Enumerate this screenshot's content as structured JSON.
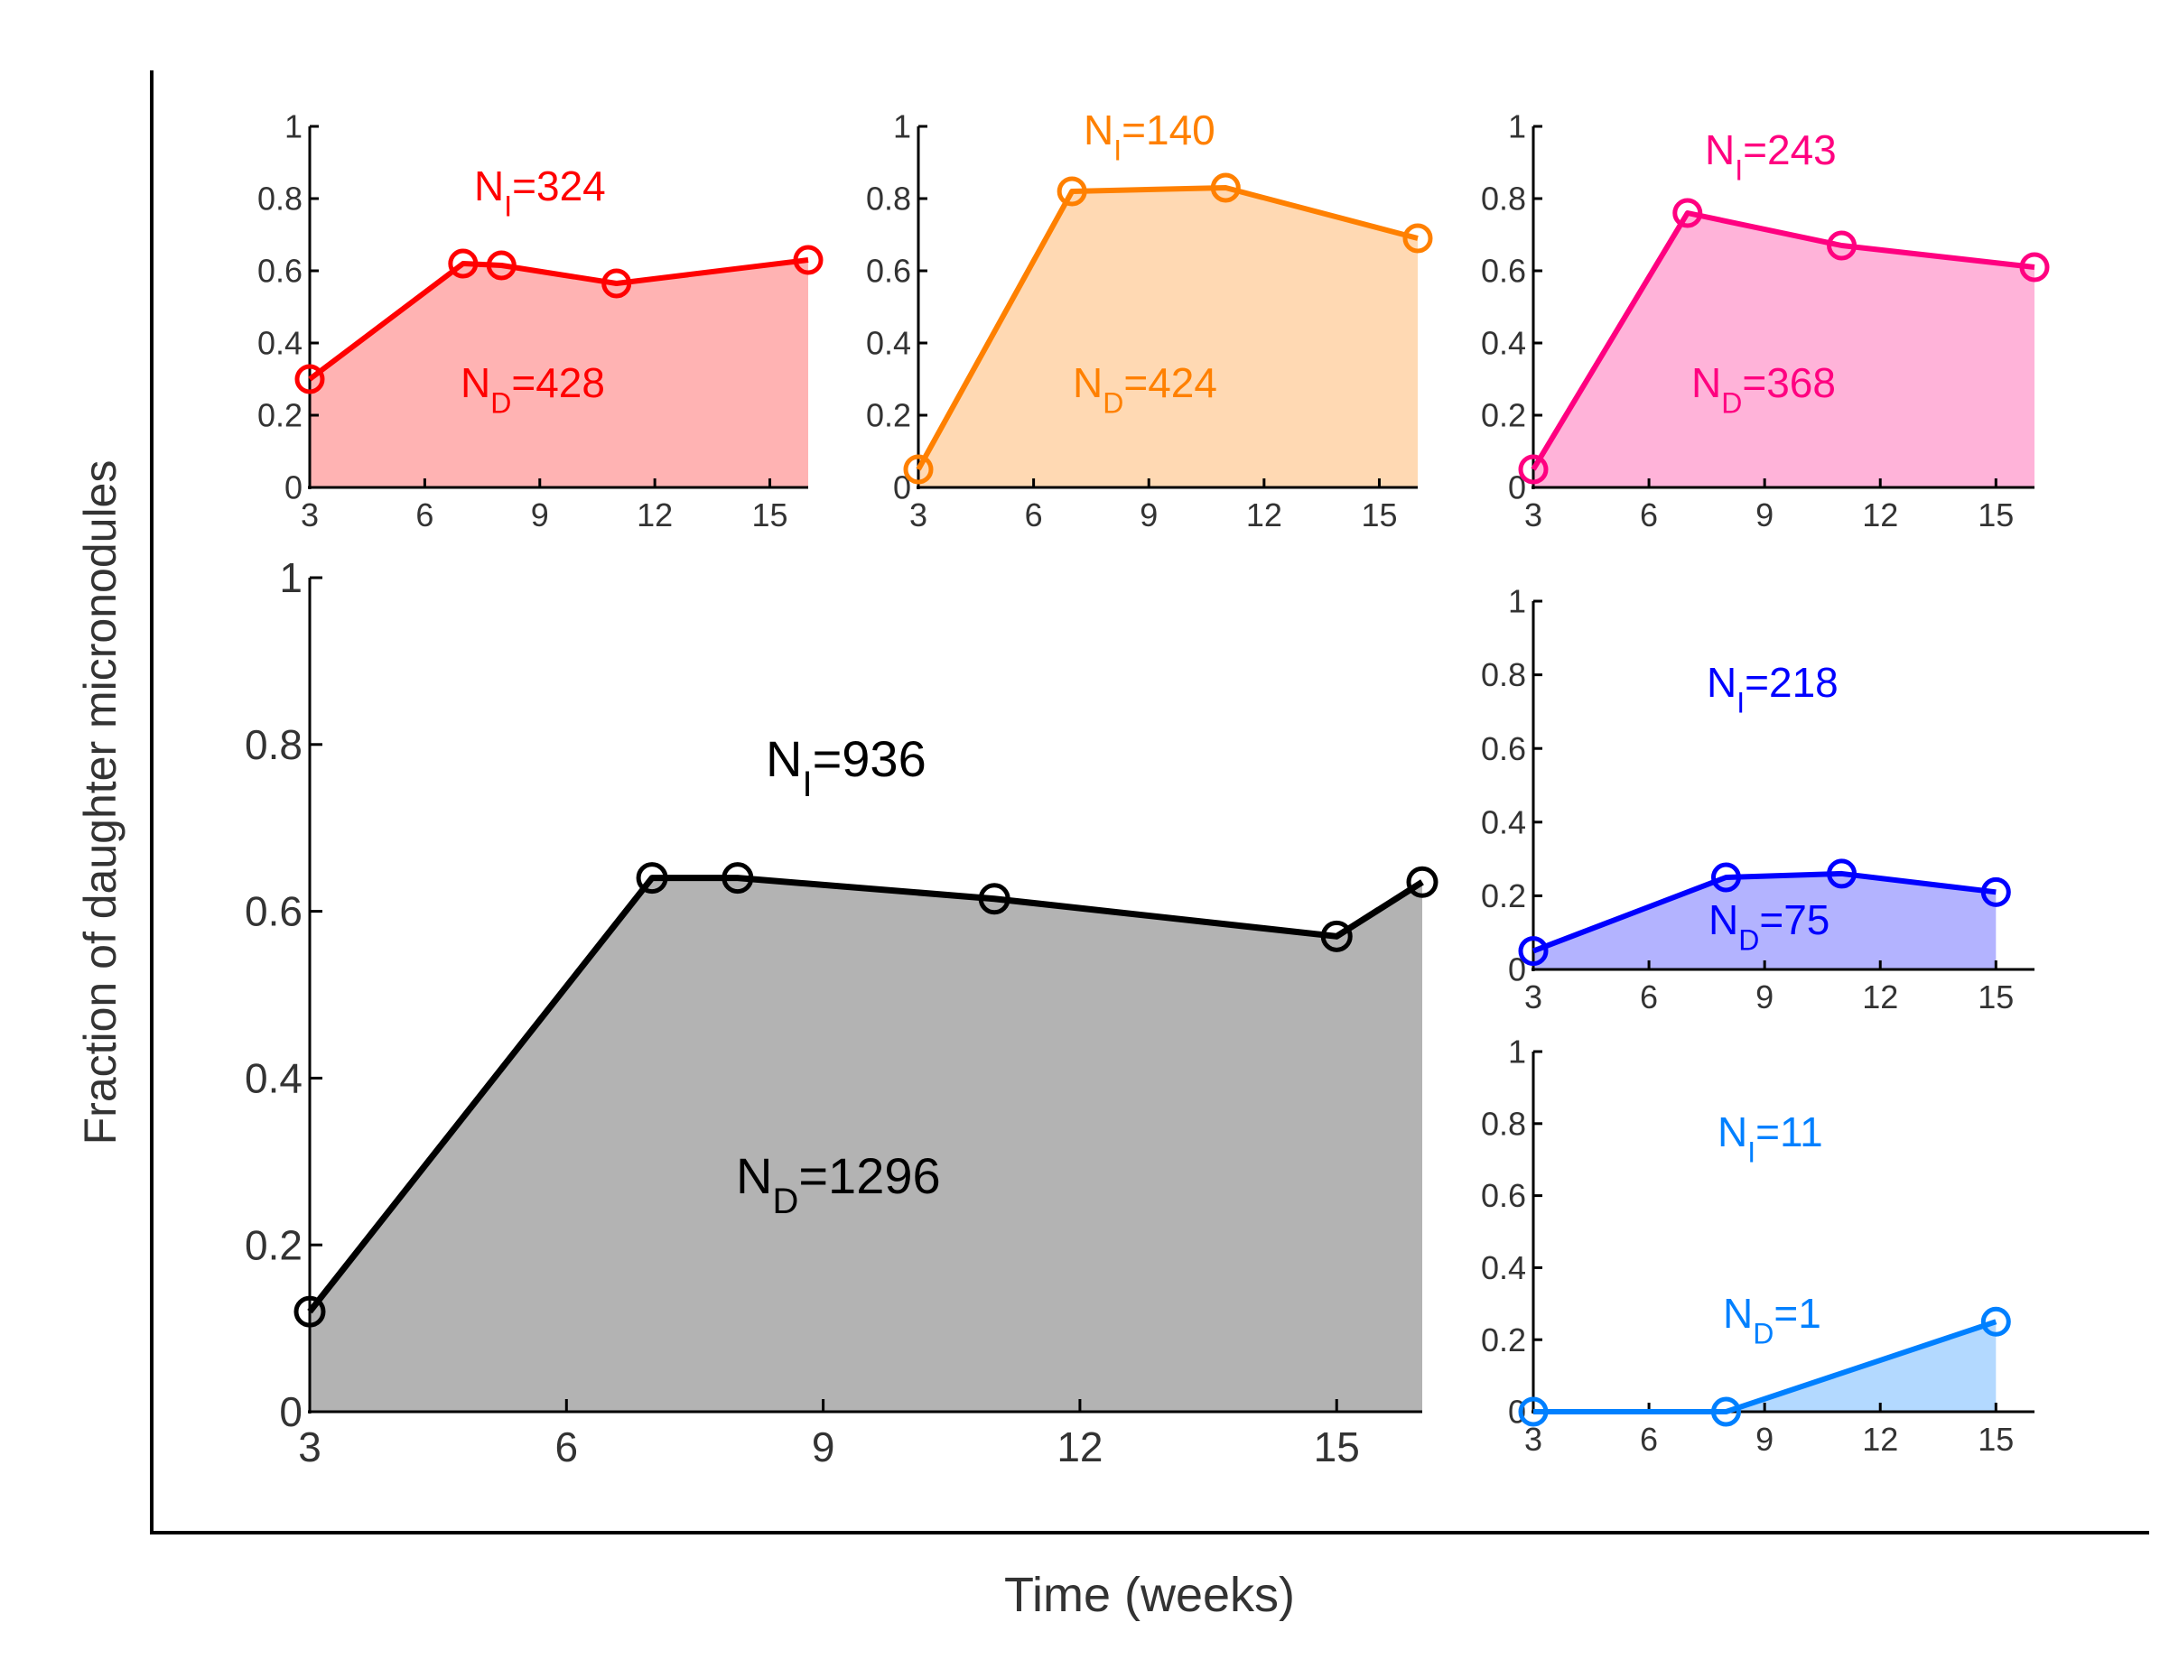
{
  "figure": {
    "ylabel": "Fraction of daughter micronodules",
    "xlabel": "Time (weeks)"
  },
  "chart_data": [
    {
      "id": "main",
      "type": "area",
      "color": "#000000",
      "fill": "#b3b3b3",
      "x": [
        3,
        7,
        8,
        11,
        15,
        16
      ],
      "values": [
        0.12,
        0.64,
        0.64,
        0.615,
        0.57,
        0.635
      ],
      "xlim": [
        3,
        16
      ],
      "ylim": [
        0,
        1
      ],
      "xticks": [
        3,
        6,
        9,
        12,
        15
      ],
      "yticks": [
        0,
        0.2,
        0.4,
        0.6,
        0.8,
        1
      ],
      "ni_text": "936",
      "nd_text": "1296"
    },
    {
      "id": "red",
      "type": "area",
      "color": "#ff0000",
      "fill": "#ffb3b3",
      "x": [
        3,
        7,
        8,
        11,
        16
      ],
      "values": [
        0.3,
        0.62,
        0.615,
        0.565,
        0.63
      ],
      "xlim": [
        3,
        16
      ],
      "ylim": [
        0,
        1
      ],
      "xticks": [
        3,
        6,
        9,
        12,
        15
      ],
      "yticks": [
        0,
        0.2,
        0.4,
        0.6,
        0.8,
        1
      ],
      "ni_text": "324",
      "nd_text": "428"
    },
    {
      "id": "orange",
      "type": "area",
      "color": "#ff8000",
      "fill": "#ffd9b3",
      "x": [
        3,
        7,
        11,
        16
      ],
      "values": [
        0.05,
        0.82,
        0.83,
        0.69
      ],
      "xlim": [
        3,
        16
      ],
      "ylim": [
        0,
        1
      ],
      "xticks": [
        3,
        6,
        9,
        12,
        15
      ],
      "yticks": [
        0,
        0.2,
        0.4,
        0.6,
        0.8,
        1
      ],
      "ni_text": "140",
      "nd_text": "424"
    },
    {
      "id": "pink",
      "type": "area",
      "color": "#ff0080",
      "fill": "#ffb3d9",
      "x": [
        3,
        7,
        11,
        16
      ],
      "values": [
        0.05,
        0.76,
        0.67,
        0.61
      ],
      "xlim": [
        3,
        16
      ],
      "ylim": [
        0,
        1
      ],
      "xticks": [
        3,
        6,
        9,
        12,
        15
      ],
      "yticks": [
        0,
        0.2,
        0.4,
        0.6,
        0.8,
        1
      ],
      "ni_text": "243",
      "nd_text": "368"
    },
    {
      "id": "blue",
      "type": "area",
      "color": "#0000ff",
      "fill": "#b3b3ff",
      "x": [
        3,
        8,
        11,
        15
      ],
      "values": [
        0.05,
        0.25,
        0.26,
        0.21
      ],
      "xlim": [
        3,
        16
      ],
      "ylim": [
        0,
        1
      ],
      "xticks": [
        3,
        6,
        9,
        12,
        15
      ],
      "yticks": [
        0,
        0.2,
        0.4,
        0.6,
        0.8,
        1
      ],
      "ni_text": "218",
      "nd_text": "75"
    },
    {
      "id": "lightblue",
      "type": "area",
      "color": "#0080ff",
      "fill": "#b3d9ff",
      "x": [
        3,
        8,
        15
      ],
      "values": [
        0,
        0,
        0.25
      ],
      "xlim": [
        3,
        16
      ],
      "ylim": [
        0,
        1
      ],
      "xticks": [
        3,
        6,
        9,
        12,
        15
      ],
      "yticks": [
        0,
        0.2,
        0.4,
        0.6,
        0.8,
        1
      ],
      "ni_text": "11",
      "nd_text": "1"
    }
  ]
}
